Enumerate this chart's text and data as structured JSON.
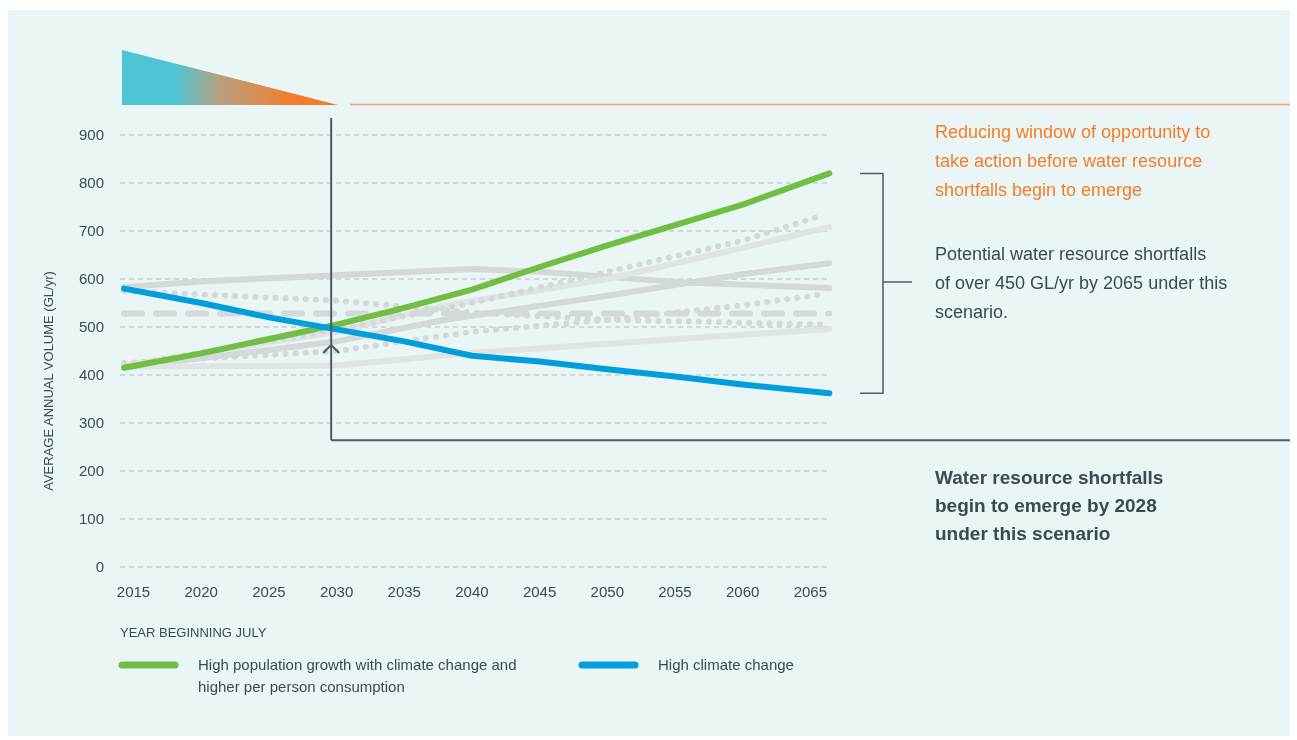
{
  "chart_data": {
    "type": "line",
    "xlabel": "YEAR BEGINNING JULY",
    "ylabel": "AVERAGE ANNUAL VOLUME (GL/yr)",
    "xlim": [
      2014,
      2066.6
    ],
    "xticks": [
      2015,
      2020,
      2025,
      2030,
      2035,
      2040,
      2045,
      2050,
      2055,
      2060,
      2065
    ],
    "ylim": [
      0,
      900
    ],
    "yticks": [
      0,
      100,
      200,
      300,
      400,
      500,
      600,
      700,
      800,
      900
    ],
    "grid": "y",
    "legend": "bottom",
    "series": [
      {
        "color": "#d3d8d9",
        "line_style": "solid",
        "x": [
          2014.3,
          2020,
          2030,
          2040,
          2045,
          2055,
          2066.4
        ],
        "values": [
          583,
          595,
          608,
          621,
          615,
          594,
          581
        ]
      },
      {
        "color": "#dfe4e4",
        "line_style": "solid",
        "x": [
          2014.3,
          2030,
          2038,
          2050,
          2060,
          2066.4
        ],
        "values": [
          420,
          490,
          545,
          600,
          665,
          708
        ]
      },
      {
        "color": "#d3d8d9",
        "line_style": "solid",
        "x": [
          2014.3,
          2030,
          2038,
          2050,
          2060,
          2066.4
        ],
        "values": [
          415,
          470,
          515,
          565,
          610,
          633
        ]
      },
      {
        "color": "#dfe4e4",
        "line_style": "solid",
        "x": [
          2014.3,
          2030,
          2040,
          2050,
          2066.4
        ],
        "values": [
          417,
          420,
          446,
          465,
          496
        ]
      },
      {
        "color": "#d3d8d9",
        "line_style": "dashed",
        "x": [
          2014.3,
          2066.4
        ],
        "values": [
          528,
          528
        ]
      },
      {
        "color": "#d3d8d9",
        "line_style": "dotted",
        "x": [
          2014.3,
          2030,
          2040,
          2050,
          2066.4
        ],
        "values": [
          575,
          555,
          530,
          515,
          505
        ]
      },
      {
        "color": "#d3d8d9",
        "line_style": "dotted",
        "x": [
          2014.3,
          2030,
          2040,
          2050,
          2060,
          2065.6
        ],
        "values": [
          420,
          495,
          550,
          615,
          680,
          730
        ]
      },
      {
        "color": "#d3d8d9",
        "line_style": "dotted",
        "x": [
          2014.3,
          2030,
          2040,
          2050,
          2060,
          2065.6
        ],
        "values": [
          425,
          450,
          490,
          515,
          545,
          567
        ]
      },
      {
        "name": "High population growth with climate change and higher per person consumption",
        "color": "#72be44",
        "line_style": "solid",
        "x": [
          2014.3,
          2020,
          2025,
          2030,
          2035,
          2040,
          2045,
          2050,
          2055,
          2060,
          2066.4
        ],
        "values": [
          415,
          445,
          475,
          505,
          540,
          578,
          625,
          670,
          712,
          755,
          820
        ]
      },
      {
        "name": "High climate change",
        "color": "#009fdb",
        "line_style": "solid",
        "x": [
          2014.3,
          2020,
          2025,
          2030,
          2035,
          2040,
          2045,
          2050,
          2055,
          2060,
          2066.4
        ],
        "values": [
          580,
          550,
          520,
          495,
          470,
          440,
          428,
          412,
          397,
          380,
          362
        ]
      }
    ],
    "annotations": [
      "Reducing window of opportunity to take action before water resource shortfalls begin to emerge",
      "Potential water resource shortfalls of over 450 GL/yr by 2065 under this scenario.",
      "Water resource shortfalls begin to emerge by 2028 under this scenario"
    ],
    "ref_lines": [
      {
        "axis": "x",
        "value": 2029.6,
        "color": "#505a62"
      },
      {
        "axis": "y",
        "value": 264,
        "color": "#505a62"
      }
    ]
  }
}
